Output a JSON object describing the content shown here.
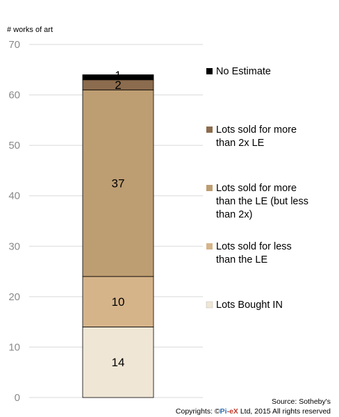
{
  "chart_data": {
    "type": "bar",
    "stacked": true,
    "ylabel": "# works of art",
    "ylim": [
      0,
      70
    ],
    "yticks": [
      0,
      10,
      20,
      30,
      40,
      50,
      60,
      70
    ],
    "grid": true,
    "legend_position": "right",
    "categories": [
      ""
    ],
    "series": [
      {
        "name": "Lots Bought IN",
        "values": [
          14
        ],
        "color": "#f0e6d5",
        "legend_lines": [
          "Lots Bought IN"
        ]
      },
      {
        "name": "Lots sold for less than the LE",
        "values": [
          10
        ],
        "color": "#d6b48a",
        "legend_lines": [
          "Lots sold for less",
          "than the LE"
        ]
      },
      {
        "name": "Lots sold for more than the LE (but less than 2x)",
        "values": [
          37
        ],
        "color": "#bd9d72",
        "legend_lines": [
          "Lots sold for more",
          "than the LE (but less",
          "than 2x)"
        ]
      },
      {
        "name": "Lots sold for more than 2x LE",
        "values": [
          2
        ],
        "color": "#8c6c4e",
        "legend_lines": [
          "Lots sold for more",
          "than 2x LE"
        ]
      },
      {
        "name": "No Estimate",
        "values": [
          1
        ],
        "color": "#000000",
        "legend_lines": [
          "No Estimate"
        ]
      }
    ]
  },
  "footer": {
    "source": "Source: Sotheby's",
    "copyright_prefix": "Copyrights: ©",
    "brand_pi": "Pi",
    "brand_dash": "-",
    "brand_ex": "eX",
    "copyright_suffix": " Ltd, 2015 All rights reserved"
  },
  "colors": {
    "brand_pi": "#2d6fb3",
    "brand_ex": "#c0392b"
  }
}
